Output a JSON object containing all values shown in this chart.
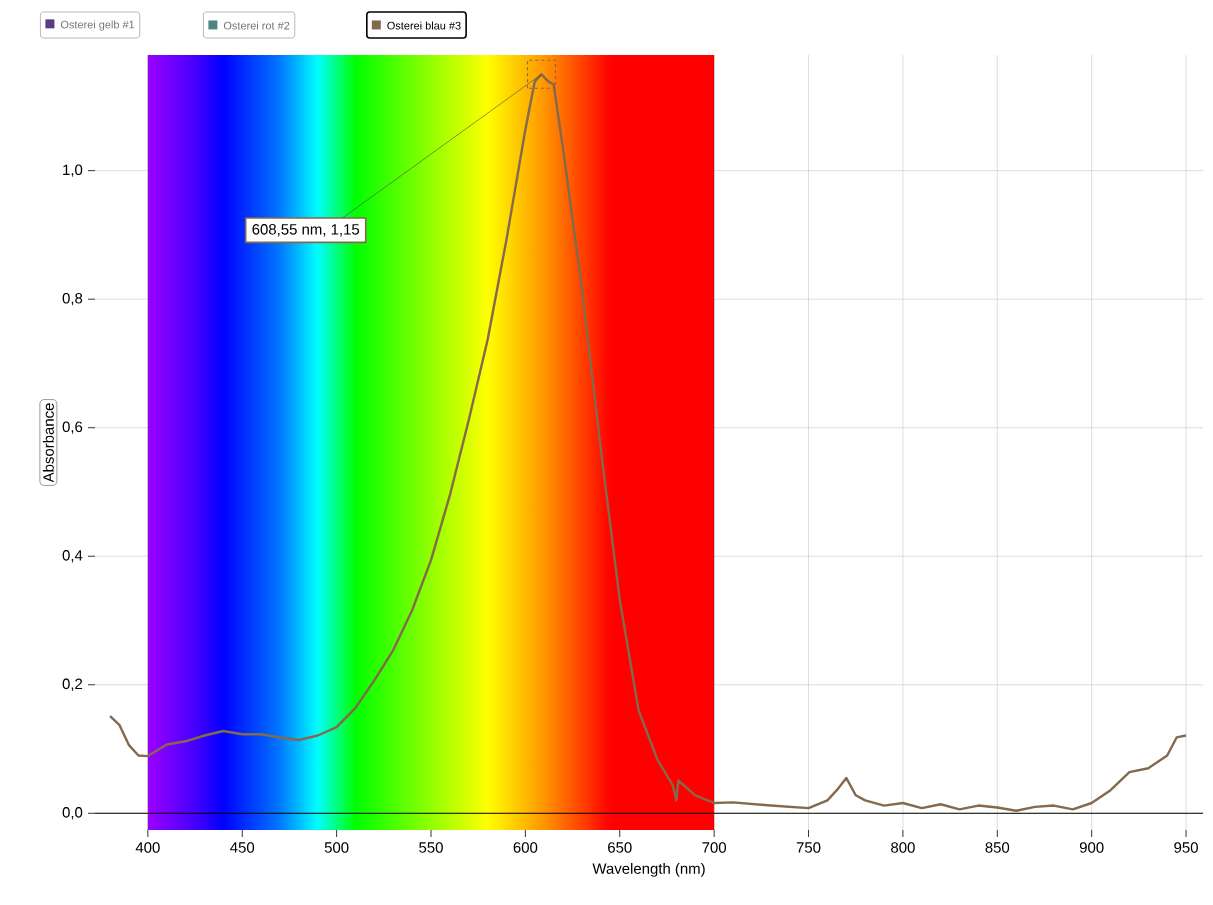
{
  "chart_data": {
    "type": "line",
    "xlabel": "Wavelength (nm)",
    "ylabel": "Absorbance",
    "series": [
      {
        "name": "Osterei gelb #1",
        "color": "#5b3a86"
      },
      {
        "name": "Osterei rot #2",
        "color": "#4e8580"
      },
      {
        "name": "Osterei blau #3",
        "color": "#836a4c",
        "x": [
          380,
          385,
          390,
          395,
          400,
          410,
          420,
          430,
          440,
          450,
          460,
          470,
          480,
          490,
          500,
          510,
          520,
          530,
          540,
          550,
          560,
          570,
          580,
          590,
          600,
          605,
          608.55,
          612,
          615,
          620,
          630,
          640,
          650,
          660,
          670,
          678,
          680,
          681,
          690,
          700,
          710,
          730,
          750,
          760,
          765,
          770,
          775,
          780,
          790,
          800,
          810,
          820,
          830,
          840,
          850,
          860,
          870,
          880,
          890,
          900,
          910,
          920,
          930,
          940,
          945,
          950
        ],
        "values": [
          0.151,
          0.137,
          0.106,
          0.09,
          0.089,
          0.107,
          0.112,
          0.121,
          0.128,
          0.123,
          0.123,
          0.118,
          0.114,
          0.121,
          0.134,
          0.164,
          0.207,
          0.254,
          0.316,
          0.394,
          0.495,
          0.612,
          0.737,
          0.893,
          1.064,
          1.139,
          1.15,
          1.139,
          1.134,
          1.033,
          0.815,
          0.565,
          0.332,
          0.16,
          0.083,
          0.044,
          0.02,
          0.051,
          0.028,
          0.016,
          0.017,
          0.012,
          0.008,
          0.02,
          0.036,
          0.055,
          0.028,
          0.02,
          0.012,
          0.016,
          0.008,
          0.014,
          0.006,
          0.012,
          0.009,
          0.004,
          0.01,
          0.012,
          0.006,
          0.016,
          0.036,
          0.064,
          0.07,
          0.09,
          0.118,
          0.121
        ]
      }
    ],
    "xlim": [
      372,
      959
    ],
    "ylim": [
      -0.026,
      1.18
    ],
    "xticks": [
      400,
      450,
      500,
      550,
      600,
      650,
      700,
      750,
      800,
      850,
      900,
      950
    ],
    "yticks": [
      {
        "value": 0,
        "label": "0,0"
      },
      {
        "value": 0.2,
        "label": "0,2"
      },
      {
        "value": 0.4,
        "label": "0,4"
      },
      {
        "value": 0.6,
        "label": "0,6"
      },
      {
        "value": 0.8,
        "label": "0,8"
      },
      {
        "value": 1.0,
        "label": "1,0"
      }
    ],
    "bands": [
      {
        "axis": "x",
        "from": 400,
        "to": 700,
        "color": "spectrum"
      }
    ],
    "ref_lines": [
      {
        "axis": "y",
        "value": 0,
        "color": "#000000"
      }
    ],
    "annotations": [
      {
        "text": "608,55 nm, 1,15",
        "x": 608.55,
        "y": 1.15
      }
    ],
    "grid": true,
    "legend": "top left",
    "marker": "none",
    "line_style": "solid"
  }
}
